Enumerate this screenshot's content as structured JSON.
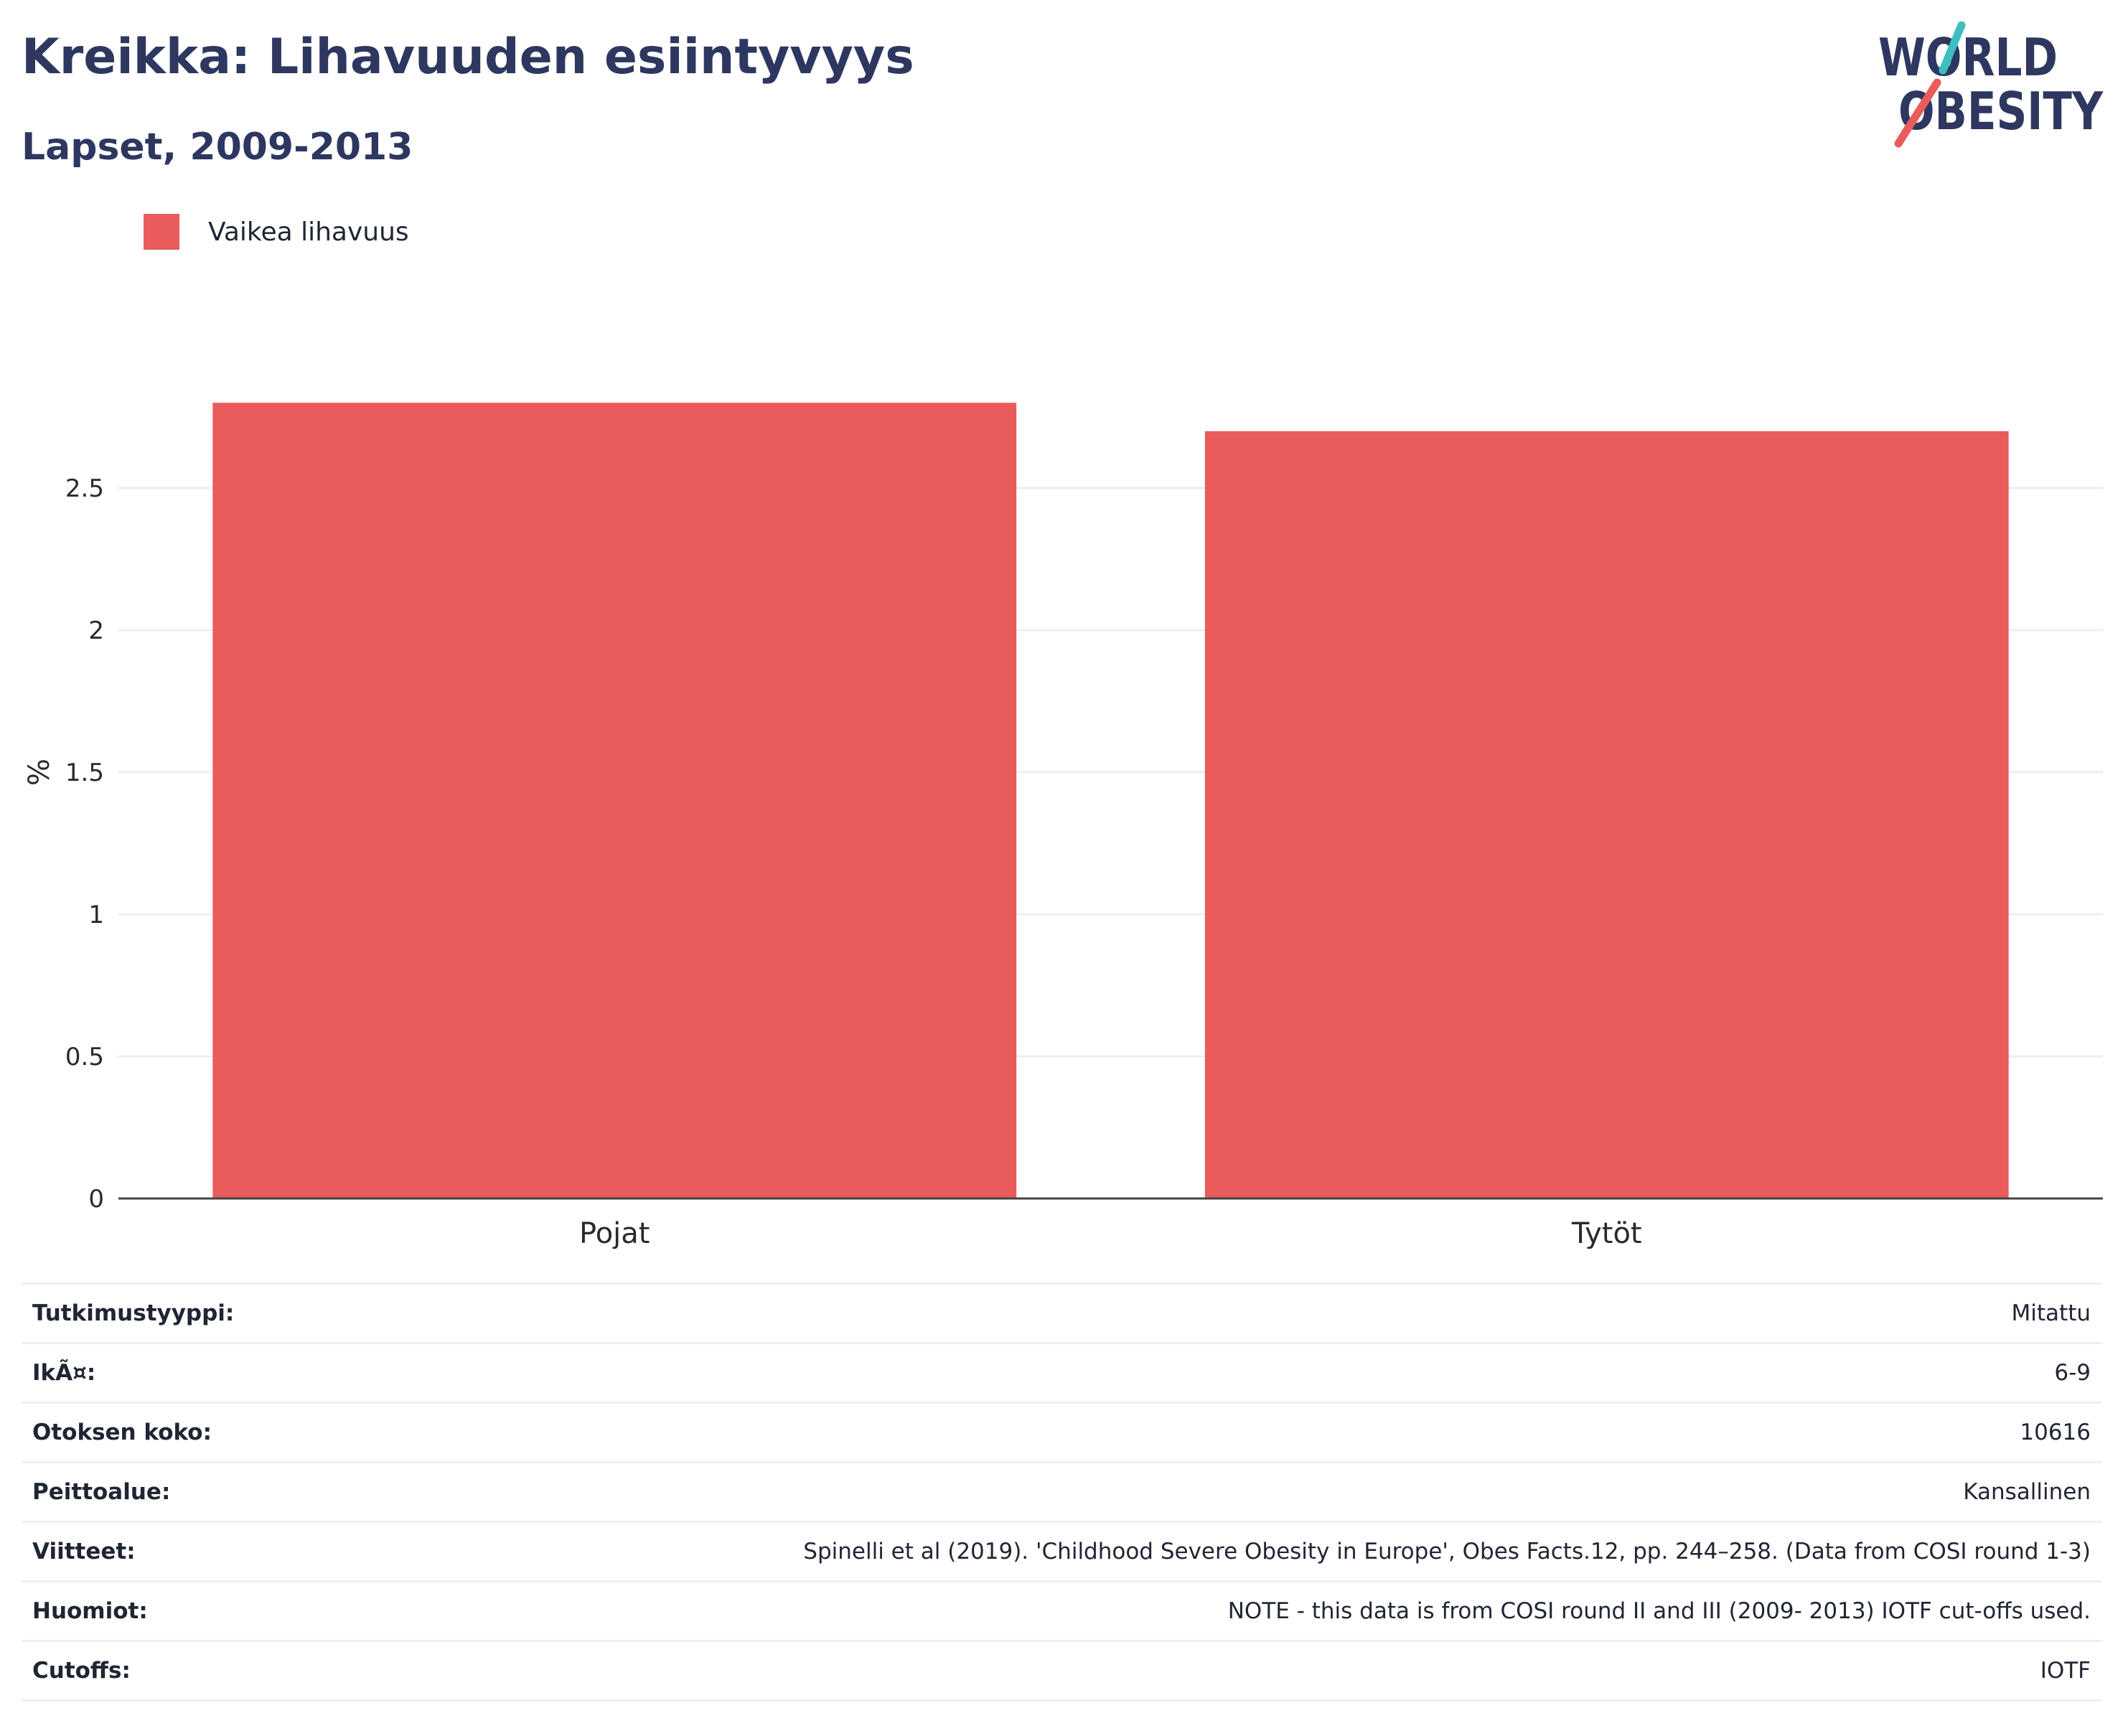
{
  "header": {
    "title": "Kreikka: Lihavuuden esiintyvyys",
    "subtitle": "Lapset, 2009-2013"
  },
  "logo": {
    "line1": "WORLD",
    "line2": "OBESITY",
    "colors": {
      "text": "#2d3760",
      "slash_top": "#3cbfbf",
      "slash_bottom": "#ea5b5b"
    }
  },
  "legend": {
    "items": [
      {
        "label": "Vaikea lihavuus",
        "color": "#ea5b5b"
      }
    ],
    "position": "top-left"
  },
  "chart_data": {
    "type": "bar",
    "categories": [
      "Pojat",
      "Tytöt"
    ],
    "series": [
      {
        "name": "Vaikea lihavuus",
        "values": [
          2.8,
          2.7
        ],
        "color": "#ea5b5b"
      }
    ],
    "title": "Kreikka: Lihavuuden esiintyvyys",
    "subtitle": "Lapset, 2009-2013",
    "xlabel": "",
    "ylabel": "%",
    "ylim": [
      0,
      2.9
    ],
    "yticks": [
      0,
      0.5,
      1,
      1.5,
      2,
      2.5
    ],
    "ytick_labels": [
      "0",
      "0.5",
      "1",
      "1.5",
      "2",
      "2.5"
    ],
    "grid": true,
    "grid_color": "#eceef5",
    "axis_color": "#444444"
  },
  "info": [
    {
      "key": "Tutkimustyyppi:",
      "value": "Mitattu"
    },
    {
      "key": "IkÃ¤:",
      "value": "6-9"
    },
    {
      "key": "Otoksen koko:",
      "value": "10616"
    },
    {
      "key": "Peittoalue:",
      "value": "Kansallinen"
    },
    {
      "key": "Viitteet:",
      "value": "Spinelli et al (2019). 'Childhood Severe Obesity in Europe', Obes Facts.12, pp. 244–258. (Data from COSI round 1-3)"
    },
    {
      "key": "Huomiot:",
      "value": "NOTE - this data is from COSI round II and III (2009- 2013) IOTF cut-offs used."
    },
    {
      "key": "Cutoffs:",
      "value": "IOTF"
    }
  ]
}
